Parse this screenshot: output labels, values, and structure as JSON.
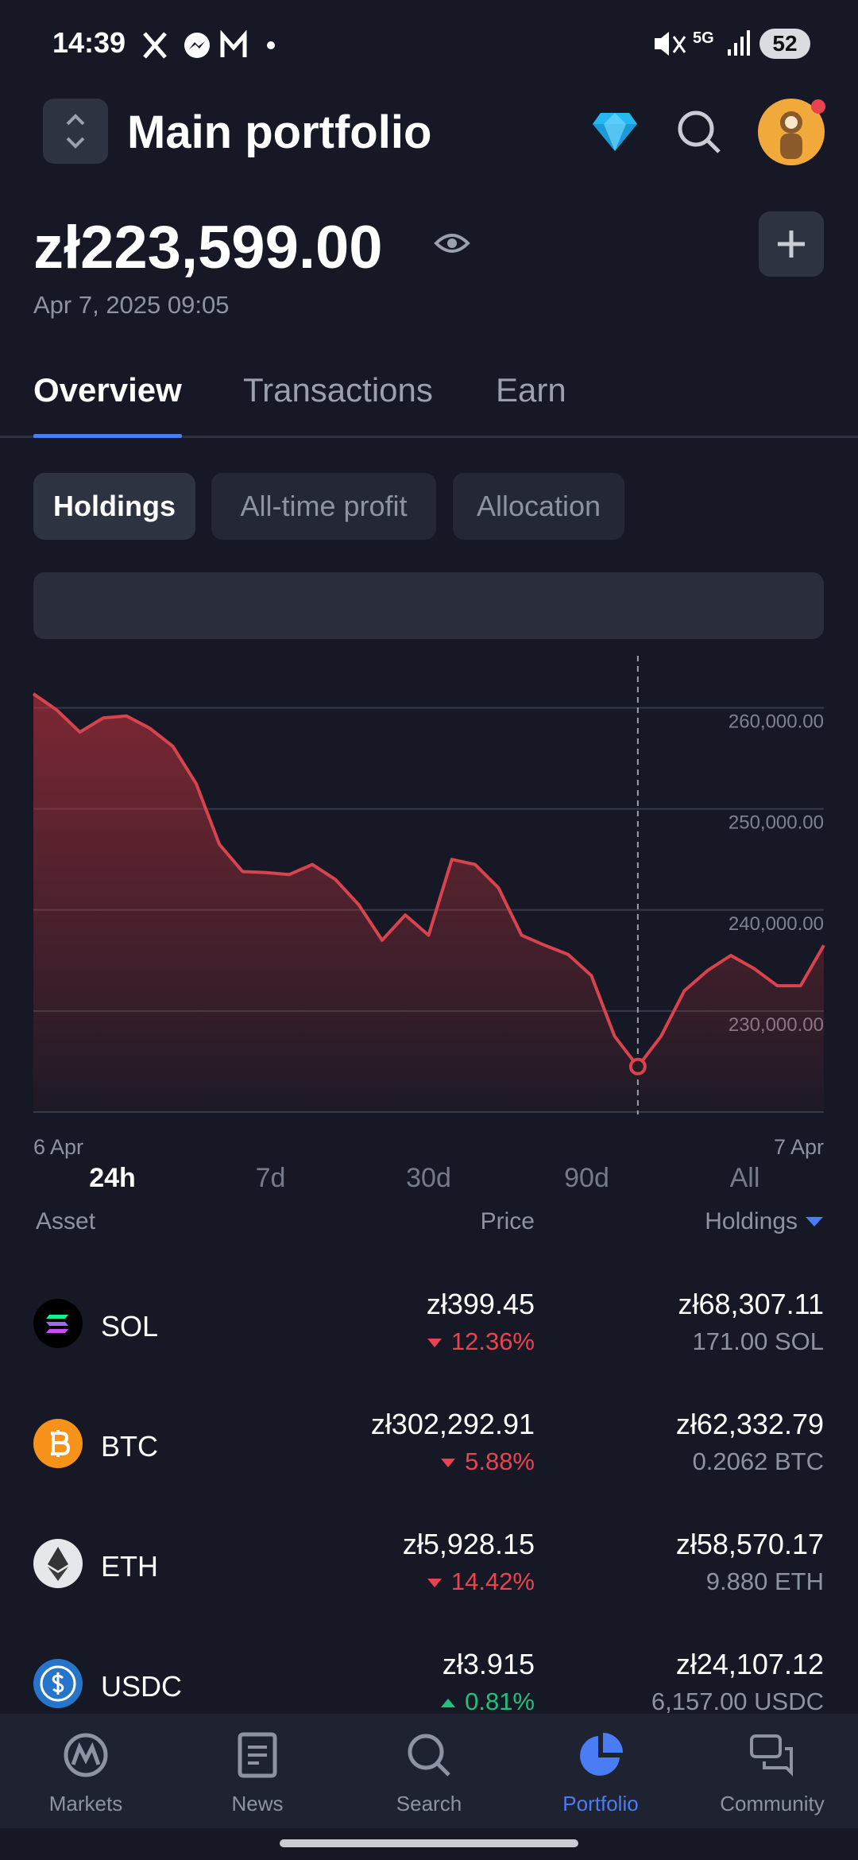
{
  "status_bar": {
    "time": "14:39",
    "network": "5G",
    "battery": "52"
  },
  "header": {
    "title": "Main portfolio"
  },
  "balance": {
    "amount": "zł223,599.00",
    "date": "Apr 7, 2025 09:05"
  },
  "tabs": [
    {
      "label": "Overview",
      "active": true
    },
    {
      "label": "Transactions",
      "active": false
    },
    {
      "label": "Earn",
      "active": false
    }
  ],
  "pills": [
    {
      "label": "Holdings",
      "active": true
    },
    {
      "label": "All-time profit",
      "active": false
    },
    {
      "label": "Allocation",
      "active": false
    }
  ],
  "ranges": [
    {
      "label": "24h",
      "active": true
    },
    {
      "label": "7d",
      "active": false
    },
    {
      "label": "30d",
      "active": false
    },
    {
      "label": "90d",
      "active": false
    },
    {
      "label": "All",
      "active": false
    }
  ],
  "chart_data": {
    "type": "line",
    "color": "#d8434d",
    "values": [
      261400,
      259800,
      257600,
      259000,
      259200,
      258000,
      256200,
      252500,
      246500,
      243800,
      243700,
      243500,
      244500,
      243000,
      240500,
      237000,
      239500,
      237500,
      245000,
      244500,
      242200,
      237500,
      236500,
      235600,
      233500,
      227500,
      224500,
      227500,
      232000,
      234000,
      235500,
      234200,
      232500,
      232500,
      236500
    ],
    "ylim": [
      220000,
      265000
    ],
    "yticks": [
      {
        "value": 230000,
        "label": "230,000.00"
      },
      {
        "value": 240000,
        "label": "240,000.00"
      },
      {
        "value": 250000,
        "label": "250,000.00"
      },
      {
        "value": 260000,
        "label": "260,000.00"
      }
    ],
    "x_labels": [
      "6 Apr",
      "7 Apr"
    ],
    "grid": true
  },
  "table": {
    "columns": [
      "Asset",
      "Price",
      "Holdings"
    ],
    "rows": [
      {
        "symbol": "SOL",
        "price": "zł399.45",
        "change": "12.36%",
        "direction": "down",
        "holdings": "zł68,307.11",
        "amount": "171.00 SOL"
      },
      {
        "symbol": "BTC",
        "price": "zł302,292.91",
        "change": "5.88%",
        "direction": "down",
        "holdings": "zł62,332.79",
        "amount": "0.2062 BTC"
      },
      {
        "symbol": "ETH",
        "price": "zł5,928.15",
        "change": "14.42%",
        "direction": "down",
        "holdings": "zł58,570.17",
        "amount": "9.880 ETH"
      },
      {
        "symbol": "USDC",
        "price": "zł3.915",
        "change": "0.81%",
        "direction": "up",
        "holdings": "zł24,107.12",
        "amount": "6,157.00 USDC"
      }
    ]
  },
  "nav": [
    {
      "label": "Markets",
      "active": false
    },
    {
      "label": "News",
      "active": false
    },
    {
      "label": "Search",
      "active": false
    },
    {
      "label": "Portfolio",
      "active": true
    },
    {
      "label": "Community",
      "active": false
    }
  ]
}
